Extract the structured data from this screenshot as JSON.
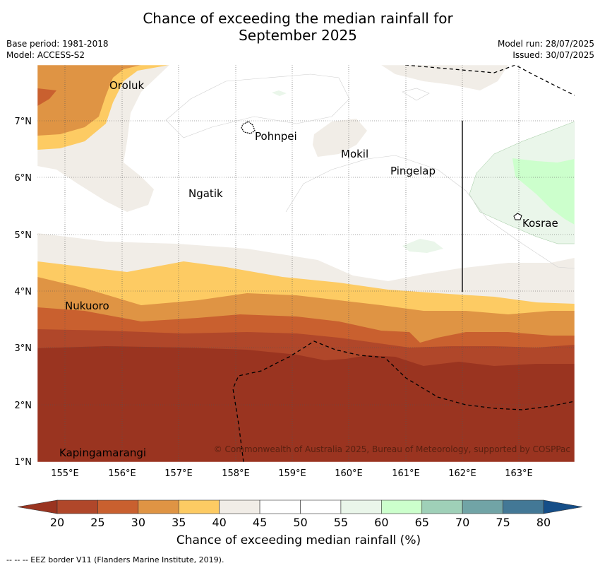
{
  "title_line1": "Chance of exceeding the median rainfall for",
  "title_line2": "September 2025",
  "meta_left": [
    "Base period: 1981-2018",
    "Model: ACCESS-S2"
  ],
  "meta_right": [
    "Model run: 28/07/2025",
    "Issued: 30/07/2025"
  ],
  "lon_ticks": [
    "155°E",
    "156°E",
    "157°E",
    "158°E",
    "159°E",
    "160°E",
    "161°E",
    "162°E",
    "163°E"
  ],
  "lat_ticks": [
    "7°N",
    "6°N",
    "5°N",
    "4°N",
    "3°N",
    "2°N",
    "1°N"
  ],
  "places": [
    "Oroluk",
    "Pohnpei",
    "Mokil",
    "Pingelap",
    "Ngatik",
    "Kosrae",
    "Nukuoro",
    "Kapingamarangi"
  ],
  "copyright": "© Commonwealth of Australia 2025, Bureau of Meteorology, supported by COSPPac",
  "colorbar": {
    "ticks": [
      "20",
      "25",
      "30",
      "35",
      "40",
      "45",
      "50",
      "55",
      "60",
      "65",
      "70",
      "75",
      "80"
    ],
    "colors": [
      "#b0472a",
      "#c9602f",
      "#df9444",
      "#fdcb63",
      "#f1ede7",
      "#ffffff",
      "#ffffff",
      "#eaf6ea",
      "#ccffcc",
      "#9fd0b8",
      "#71a4a6",
      "#437896"
    ],
    "under_color": "#9a3420",
    "over_color": "#154e88",
    "label": "Chance of exceeding median rainfall (%)"
  },
  "footnote": "--  --  -- EEZ border V11 (Flanders Marine Institute, 2019)."
}
